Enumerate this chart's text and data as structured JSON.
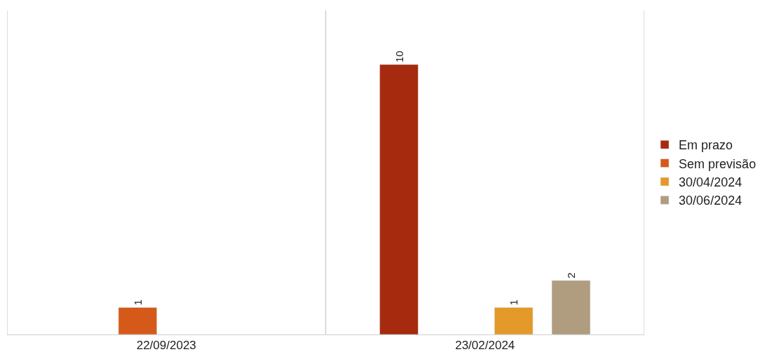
{
  "chart_data": {
    "type": "bar",
    "categories": [
      "22/09/2023",
      "23/02/2024"
    ],
    "series": [
      {
        "name": "Em prazo",
        "color": "#a52a0e",
        "values": [
          null,
          10
        ]
      },
      {
        "name": "Sem previsão",
        "color": "#d55a1a",
        "values": [
          1,
          null
        ]
      },
      {
        "name": "30/04/2024",
        "color": "#e39a2a",
        "values": [
          null,
          1
        ]
      },
      {
        "name": "30/06/2024",
        "color": "#b09c7f",
        "values": [
          null,
          2
        ]
      }
    ],
    "data_labels": true,
    "grid": "x",
    "legend": "right",
    "tick_labels": "x"
  }
}
